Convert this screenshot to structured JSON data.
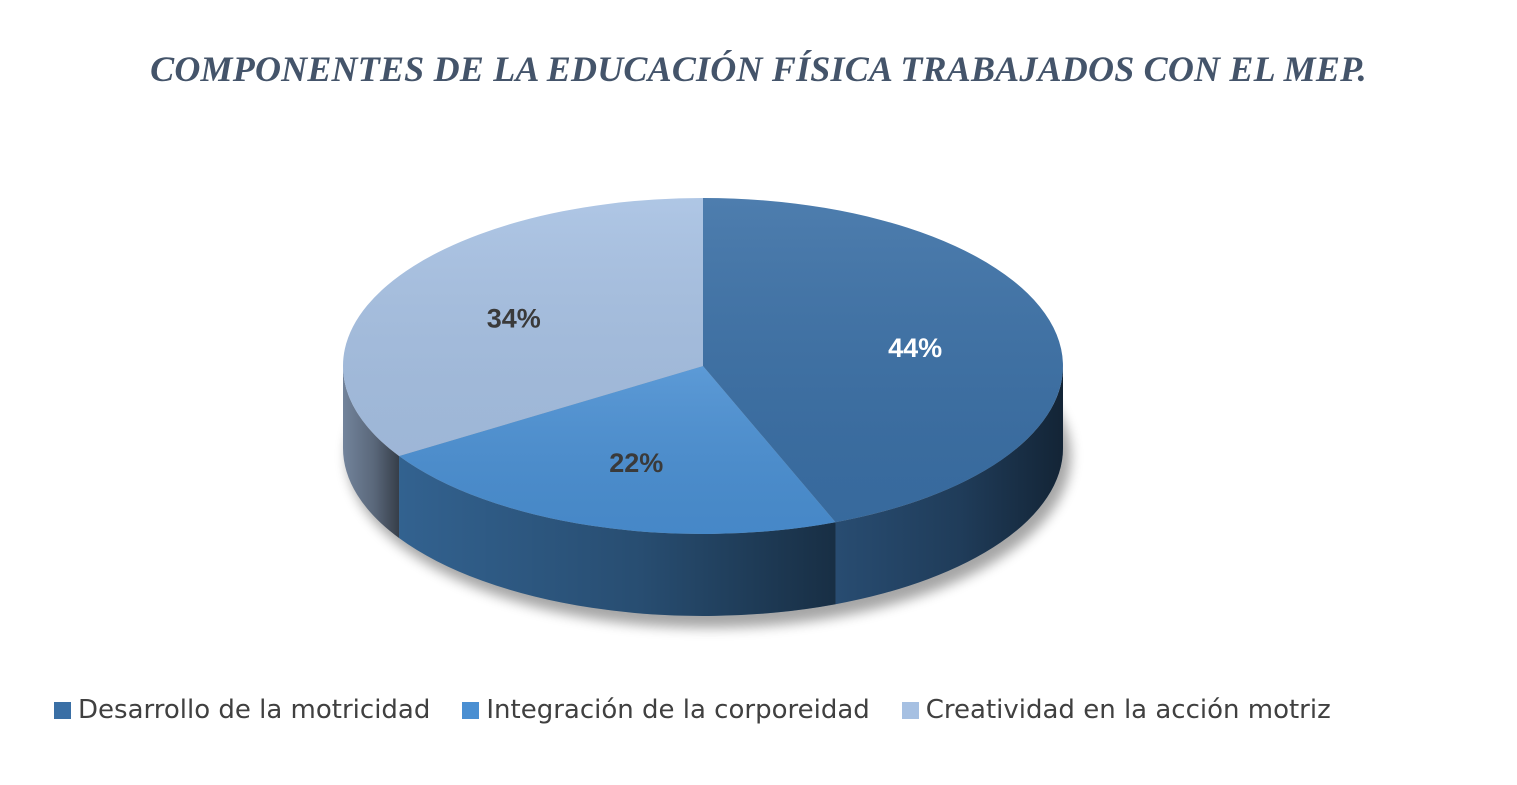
{
  "chart_data": {
    "type": "pie",
    "title": "COMPONENTES DE LA EDUCACIÓN FÍSICA TRABAJADOS CON EL MEP.",
    "categories": [
      "Desarrollo de la motricidad",
      "Integración de la corporeidad",
      "Creatividad en la acción motriz"
    ],
    "values": [
      44,
      22,
      34
    ],
    "labels": [
      "44%",
      "22%",
      "34%"
    ],
    "colors": [
      "#3a6fa5",
      "#4a8fd2",
      "#a6c0e2"
    ],
    "label_colors": [
      "#ffffff",
      "#3a3a3a",
      "#3a3a3a"
    ],
    "style": "3d",
    "legend_position": "bottom"
  }
}
